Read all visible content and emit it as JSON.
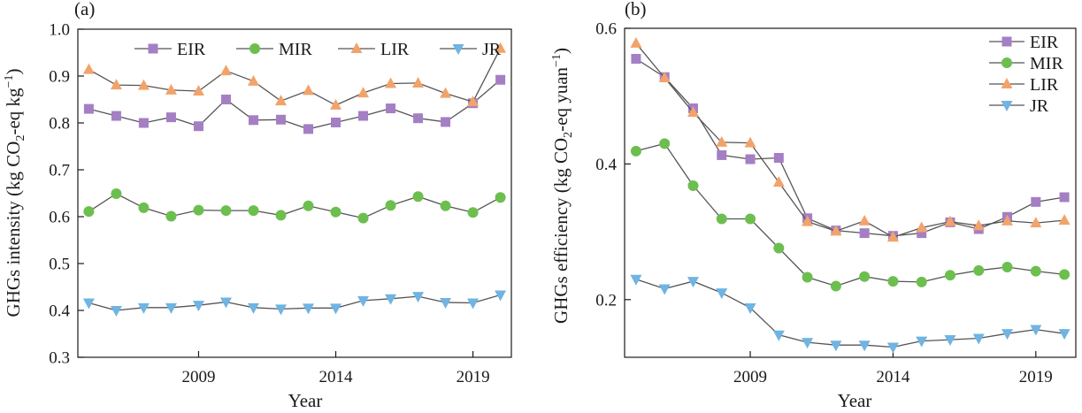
{
  "chart_data": [
    {
      "panel_label": "(a)",
      "type": "line",
      "xlabel": "Year",
      "ylabel": "GHGs intensity (kg CO₂-eq kg⁻¹)",
      "ylabel_parts": [
        "GHGs intensity (kg CO",
        "2",
        "-eq kg",
        "−1",
        ")"
      ],
      "x": [
        2005,
        2006,
        2007,
        2008,
        2009,
        2010,
        2011,
        2012,
        2013,
        2014,
        2015,
        2016,
        2017,
        2018,
        2019,
        2020
      ],
      "xlim": [
        2004.6,
        2020.4
      ],
      "ylim": [
        0.3,
        1.0
      ],
      "xticks": [
        2009,
        2014,
        2019
      ],
      "yticks": [
        0.3,
        0.4,
        0.5,
        0.6,
        0.7,
        0.8,
        0.9,
        1.0
      ],
      "ytick_labels": [
        "0.3",
        "0.4",
        "0.5",
        "0.6",
        "0.7",
        "0.8",
        "0.9",
        "1.0"
      ],
      "legend": "top",
      "series": [
        {
          "name": "EIR",
          "marker": "square",
          "color": "#a47fc4",
          "values": [
            0.83,
            0.815,
            0.8,
            0.812,
            0.793,
            0.85,
            0.806,
            0.807,
            0.787,
            0.801,
            0.815,
            0.831,
            0.81,
            0.802,
            0.842,
            0.892
          ]
        },
        {
          "name": "MIR",
          "marker": "circle",
          "color": "#6cbf4f",
          "values": [
            0.611,
            0.649,
            0.619,
            0.601,
            0.614,
            0.613,
            0.613,
            0.603,
            0.623,
            0.61,
            0.597,
            0.624,
            0.643,
            0.623,
            0.609,
            0.641
          ]
        },
        {
          "name": "LIR",
          "marker": "triangle-up",
          "color": "#f2a36b",
          "values": [
            0.914,
            0.881,
            0.88,
            0.87,
            0.868,
            0.911,
            0.889,
            0.847,
            0.869,
            0.838,
            0.864,
            0.884,
            0.885,
            0.863,
            0.845,
            0.959
          ]
        },
        {
          "name": "JR",
          "marker": "triangle-down",
          "color": "#6fb4e3",
          "values": [
            0.416,
            0.4,
            0.406,
            0.406,
            0.411,
            0.418,
            0.406,
            0.403,
            0.405,
            0.405,
            0.421,
            0.425,
            0.43,
            0.417,
            0.416,
            0.433
          ]
        }
      ]
    },
    {
      "panel_label": "(b)",
      "type": "line",
      "xlabel": "Year",
      "ylabel": "GHGs efficiency (kg CO₂-eq yuan⁻¹)",
      "ylabel_parts": [
        "GHGs efficiency (kg CO",
        "2",
        "-eq yuan",
        "−1",
        ")"
      ],
      "x": [
        2005,
        2006,
        2007,
        2008,
        2009,
        2010,
        2011,
        2012,
        2013,
        2014,
        2015,
        2016,
        2017,
        2018,
        2019,
        2020
      ],
      "xlim": [
        2004.6,
        2020.4
      ],
      "ylim": [
        0.115,
        0.6
      ],
      "xticks": [
        2009,
        2014,
        2019
      ],
      "yticks": [
        0.2,
        0.4,
        0.6
      ],
      "ytick_labels": [
        "0.2",
        "0.4",
        "0.6"
      ],
      "legend": "top-right",
      "series": [
        {
          "name": "EIR",
          "marker": "square",
          "color": "#a47fc4",
          "values": [
            0.555,
            0.528,
            0.482,
            0.413,
            0.407,
            0.409,
            0.32,
            0.302,
            0.298,
            0.294,
            0.298,
            0.314,
            0.304,
            0.322,
            0.344,
            0.351
          ]
        },
        {
          "name": "MIR",
          "marker": "circle",
          "color": "#6cbf4f",
          "values": [
            0.419,
            0.43,
            0.368,
            0.319,
            0.319,
            0.276,
            0.233,
            0.22,
            0.234,
            0.227,
            0.226,
            0.236,
            0.243,
            0.248,
            0.242,
            0.237
          ]
        },
        {
          "name": "LIR",
          "marker": "triangle-up",
          "color": "#f2a36b",
          "values": [
            0.578,
            0.527,
            0.476,
            0.432,
            0.431,
            0.373,
            0.315,
            0.301,
            0.316,
            0.292,
            0.306,
            0.315,
            0.309,
            0.316,
            0.313,
            0.317
          ]
        },
        {
          "name": "JR",
          "marker": "triangle-down",
          "color": "#6fb4e3",
          "values": [
            0.23,
            0.216,
            0.227,
            0.21,
            0.188,
            0.148,
            0.137,
            0.133,
            0.133,
            0.13,
            0.139,
            0.141,
            0.143,
            0.15,
            0.156,
            0.15
          ]
        }
      ]
    }
  ]
}
